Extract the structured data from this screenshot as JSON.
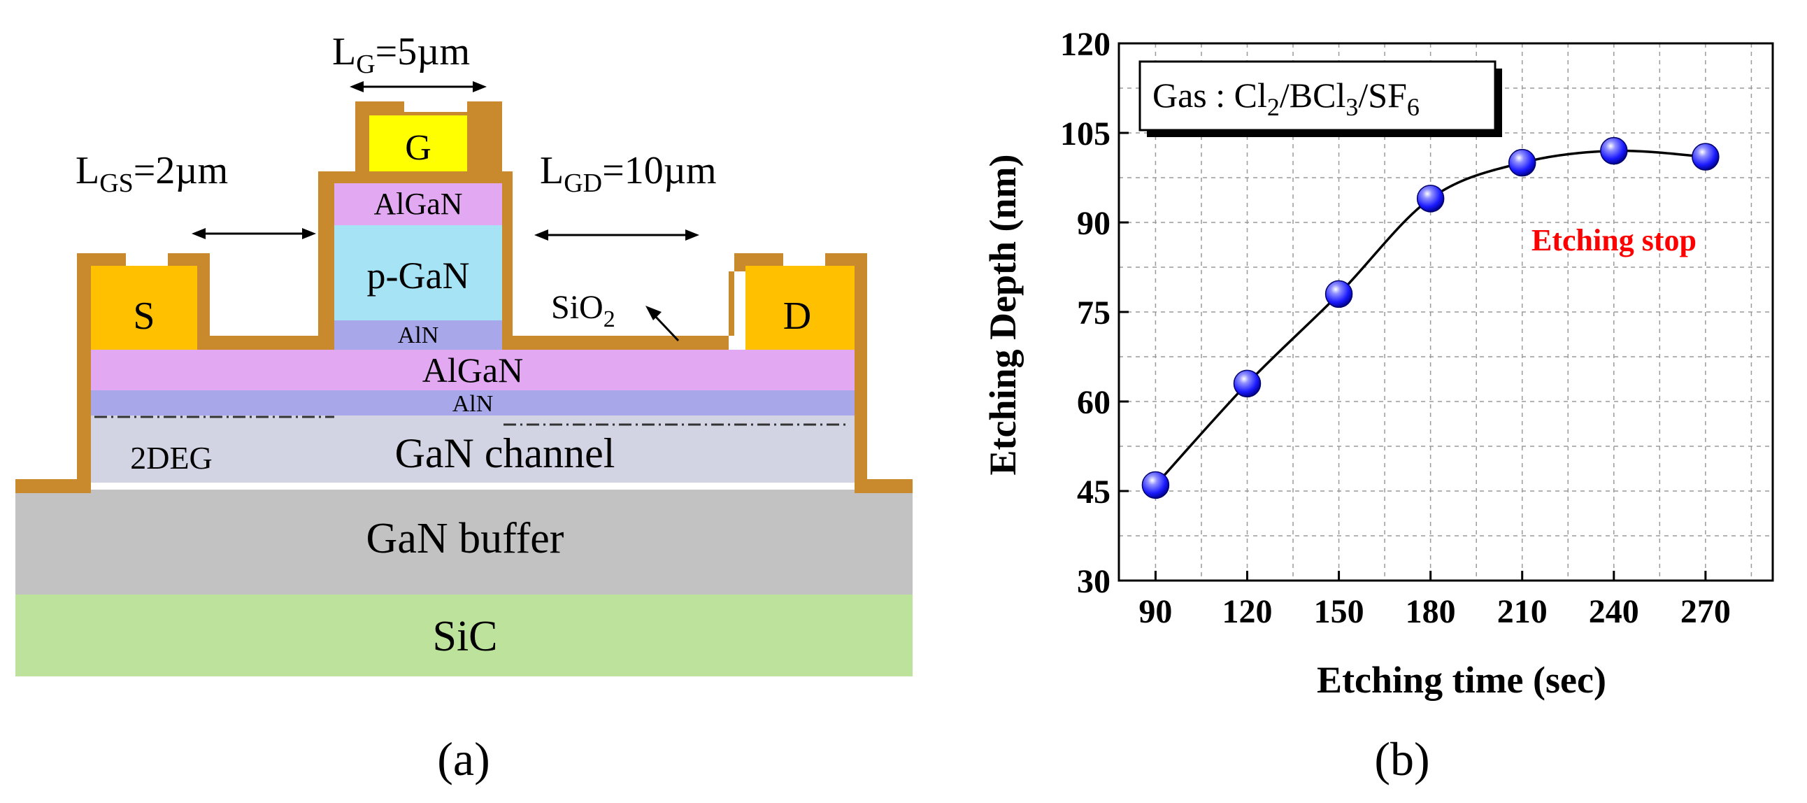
{
  "panel_a": {
    "caption": "(a)",
    "dimensions": {
      "lg_main": "L",
      "lg_sub": "G",
      "lg_value": "=5µm",
      "lgs_main": "L",
      "lgs_sub": "GS",
      "lgs_value": "=2µm",
      "lgd_main": "L",
      "lgd_sub": "GD",
      "lgd_value": "=10µm"
    },
    "contacts": {
      "source": "S",
      "gate": "G",
      "drain": "D"
    },
    "layers": {
      "gate_algan": "AlGaN",
      "p_gan": "p-GaN",
      "gate_aln": "AlN",
      "algan": "AlGaN",
      "aln": "AlN",
      "two_deg": "2DEG",
      "gan_channel": "GaN channel",
      "gan_buffer": "GaN buffer",
      "sic": "SiC",
      "sio2_main": "SiO",
      "sio2_sub": "2"
    },
    "colors": {
      "passivation": "#c98a2e",
      "contact": "#ffc000",
      "gate_contact": "#ffff00",
      "algan": "#e2a8f2",
      "p_gan": "#a6e4f5",
      "aln": "#a7a7ea",
      "gan_channel": "#d2d3e3",
      "gan_buffer": "#c2c2c2",
      "sic": "#bde29b"
    }
  },
  "panel_b": {
    "caption": "(b)",
    "legend": {
      "prefix": "Gas : Cl",
      "s1": "2",
      "mid1": "/BCl",
      "s2": "3",
      "mid2": "/SF",
      "s3": "6"
    },
    "annotation": "Etching stop",
    "annotation_color": "#ff0000",
    "marker_color": "#1a1aff"
  },
  "chart_data": {
    "type": "scatter",
    "title": "",
    "xlabel": "Etching time (sec)",
    "ylabel": "Etching Depth (nm)",
    "x": [
      90,
      120,
      150,
      180,
      210,
      240,
      270
    ],
    "y": [
      46,
      63,
      78,
      94,
      100,
      102,
      101
    ],
    "xlim": [
      78,
      292
    ],
    "ylim": [
      30,
      120
    ],
    "xticks": [
      90,
      120,
      150,
      180,
      210,
      240,
      270
    ],
    "yticks": [
      30,
      45,
      60,
      75,
      90,
      105,
      120
    ],
    "grid": true,
    "fit_line": true,
    "series": [
      {
        "name": "Etching depth",
        "x": [
          90,
          120,
          150,
          180,
          210,
          240,
          270
        ],
        "values": [
          46,
          63,
          78,
          94,
          100,
          102,
          101
        ]
      }
    ]
  }
}
